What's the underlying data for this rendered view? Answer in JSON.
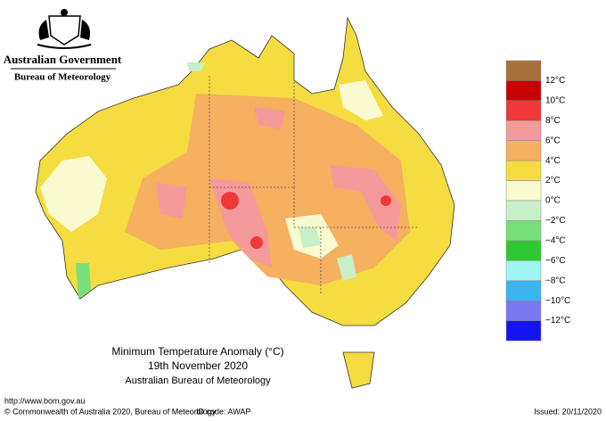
{
  "header": {
    "government": "Australian Government",
    "agency": "Bureau of Meteorology"
  },
  "map": {
    "title": "Minimum Temperature Anomaly (°C)",
    "date": "19th November 2020",
    "source": "Australian Bureau of Meteorology"
  },
  "legend": {
    "colors": [
      "#a8703c",
      "#c80000",
      "#f03838",
      "#f49a9a",
      "#f5b060",
      "#f5dc40",
      "#fafad0",
      "#c8f0c8",
      "#78e078",
      "#30c830",
      "#a0f5f5",
      "#3cb4f0",
      "#7878f0",
      "#1414f0"
    ],
    "labels": [
      "12°C",
      "10°C",
      "8°C",
      "6°C",
      "4°C",
      "2°C",
      "0°C",
      "−2°C",
      "−4°C",
      "−6°C",
      "−8°C",
      "−10°C",
      "−12°C"
    ]
  },
  "footer": {
    "url": "http://www.bom.gov.au",
    "copyright": "© Commonwealth of Australia 2020, Bureau of Meteorology",
    "id_code": "ID code: AWAP",
    "issued": "Issued: 20/11/2020"
  }
}
